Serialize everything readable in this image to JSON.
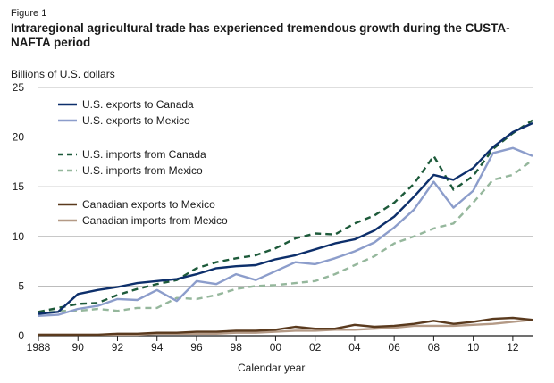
{
  "figure_label": "Figure 1",
  "chart_data": {
    "type": "line",
    "title": "Intraregional agricultural trade has experienced tremendous growth during the CUSTA-NAFTA period",
    "ylabel": "Billions of U.S. dollars",
    "xlabel": "Calendar year",
    "ylim": [
      0,
      25
    ],
    "yticks": [
      0,
      5,
      10,
      15,
      20,
      25
    ],
    "xlim": [
      1988,
      2013
    ],
    "xticks": [
      1988,
      1990,
      1992,
      1994,
      1996,
      1998,
      2000,
      2002,
      2004,
      2006,
      2008,
      2010,
      2012
    ],
    "xtick_labels": [
      "1988",
      "90",
      "92",
      "94",
      "96",
      "98",
      "00",
      "02",
      "04",
      "06",
      "08",
      "10",
      "12"
    ],
    "grid": "horizontal",
    "legend_position": "left, stacked in three groups",
    "x": [
      1988,
      1989,
      1990,
      1991,
      1992,
      1993,
      1994,
      1995,
      1996,
      1997,
      1998,
      1999,
      2000,
      2001,
      2002,
      2003,
      2004,
      2005,
      2006,
      2007,
      2008,
      2009,
      2010,
      2011,
      2012,
      2013
    ],
    "series": [
      {
        "name": "U.S. exports to Canada",
        "color": "#0d2f6b",
        "dash": "solid",
        "values": [
          2.2,
          2.4,
          4.2,
          4.6,
          4.9,
          5.3,
          5.5,
          5.7,
          6.2,
          6.8,
          7.0,
          7.1,
          7.7,
          8.1,
          8.7,
          9.3,
          9.7,
          10.6,
          12.0,
          14.0,
          16.2,
          15.7,
          16.9,
          19.0,
          20.5,
          21.4
        ]
      },
      {
        "name": "U.S. exports to Mexico",
        "color": "#8c9dcb",
        "dash": "solid",
        "values": [
          2.0,
          2.1,
          2.7,
          3.0,
          3.7,
          3.6,
          4.6,
          3.5,
          5.5,
          5.2,
          6.2,
          5.6,
          6.5,
          7.4,
          7.2,
          7.8,
          8.5,
          9.4,
          10.9,
          12.7,
          15.5,
          12.9,
          14.6,
          18.4,
          18.9,
          18.1
        ]
      },
      {
        "name": "U.S. imports from Canada",
        "color": "#1d5a3a",
        "dash": "dashed",
        "values": [
          2.4,
          2.8,
          3.2,
          3.3,
          4.1,
          4.7,
          5.2,
          5.6,
          6.8,
          7.4,
          7.8,
          8.1,
          8.8,
          9.8,
          10.3,
          10.2,
          11.3,
          12.1,
          13.4,
          15.3,
          18.1,
          14.7,
          16.1,
          18.8,
          20.4,
          21.7
        ]
      },
      {
        "name": "U.S. imports from Mexico",
        "color": "#95b79c",
        "dash": "dashed",
        "values": [
          2.3,
          2.5,
          2.5,
          2.7,
          2.5,
          2.8,
          2.8,
          3.8,
          3.7,
          4.1,
          4.7,
          5.0,
          5.1,
          5.3,
          5.5,
          6.2,
          7.1,
          8.0,
          9.3,
          10.0,
          10.8,
          11.3,
          13.4,
          15.7,
          16.2,
          17.7
        ]
      },
      {
        "name": "Canadian exports to Mexico",
        "color": "#5a3a1e",
        "dash": "solid",
        "values": [
          0.1,
          0.1,
          0.1,
          0.1,
          0.2,
          0.2,
          0.3,
          0.3,
          0.4,
          0.4,
          0.5,
          0.5,
          0.6,
          0.9,
          0.7,
          0.7,
          1.1,
          0.9,
          1.0,
          1.2,
          1.5,
          1.2,
          1.4,
          1.7,
          1.8,
          1.6
        ]
      },
      {
        "name": "Canadian imports from Mexico",
        "color": "#b49a86",
        "dash": "solid",
        "values": [
          0.1,
          0.1,
          0.1,
          0.1,
          0.1,
          0.1,
          0.2,
          0.2,
          0.2,
          0.2,
          0.3,
          0.3,
          0.4,
          0.5,
          0.5,
          0.6,
          0.6,
          0.7,
          0.8,
          1.0,
          1.0,
          1.0,
          1.1,
          1.2,
          1.4,
          1.6
        ]
      }
    ]
  }
}
